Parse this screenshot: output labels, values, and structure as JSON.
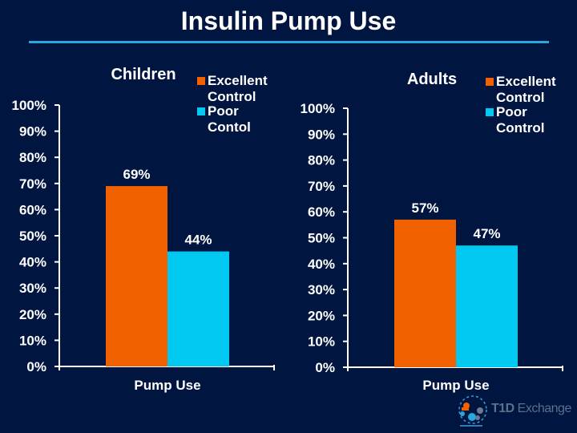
{
  "slide": {
    "title": "Insulin Pump Use",
    "accent_color": "#29a8e0",
    "background_color": "#001640"
  },
  "logo": {
    "name": "T1D Exchange",
    "bold_part": "T1D",
    "regular_part": " Exchange"
  },
  "chart_data": [
    {
      "type": "bar",
      "title": "Children",
      "categories": [
        "Pump Use"
      ],
      "series": [
        {
          "name": "Excellent Control",
          "color": "#f26100",
          "values": [
            69
          ],
          "label": "69%"
        },
        {
          "name": "Poor Contol",
          "color": "#00c8f0",
          "values": [
            44
          ],
          "label": "44%"
        }
      ],
      "legend_lines": [
        [
          "Excellent",
          "Control"
        ],
        [
          "Poor",
          "Contol"
        ]
      ],
      "ylim": [
        0,
        100
      ],
      "yticks": [
        "0%",
        "10%",
        "20%",
        "30%",
        "40%",
        "50%",
        "60%",
        "70%",
        "80%",
        "90%",
        "100%"
      ],
      "xlabel": "",
      "ylabel": "",
      "grid": false,
      "legend_position": "top-right"
    },
    {
      "type": "bar",
      "title": "Adults",
      "categories": [
        "Pump Use"
      ],
      "series": [
        {
          "name": "Excellent Control",
          "color": "#f26100",
          "values": [
            57
          ],
          "label": "57%"
        },
        {
          "name": "Poor Control",
          "color": "#00c8f0",
          "values": [
            47
          ],
          "label": "47%"
        }
      ],
      "legend_lines": [
        [
          "Excellent",
          "Control"
        ],
        [
          "Poor",
          "Control"
        ]
      ],
      "ylim": [
        0,
        100
      ],
      "yticks": [
        "0%",
        "10%",
        "20%",
        "30%",
        "40%",
        "50%",
        "60%",
        "70%",
        "80%",
        "90%",
        "100%"
      ],
      "xlabel": "",
      "ylabel": "",
      "grid": false,
      "legend_position": "top-right"
    }
  ]
}
